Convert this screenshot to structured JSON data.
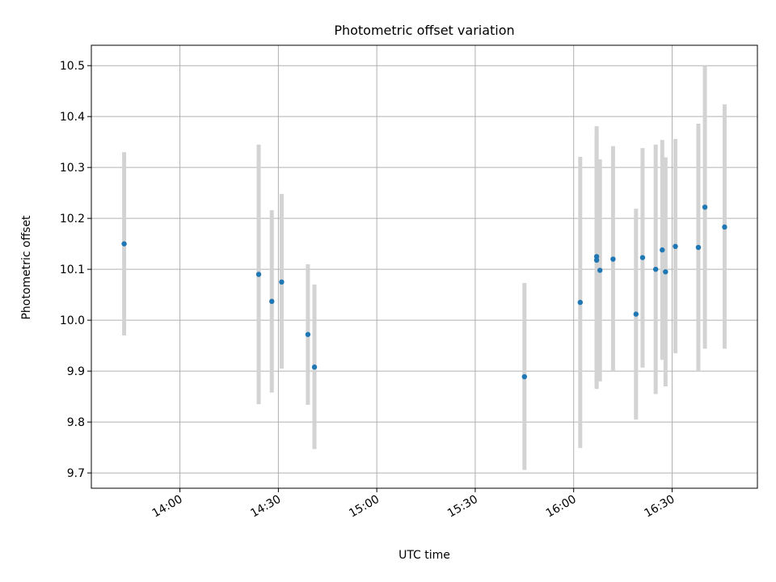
{
  "chart_data": {
    "type": "scatter",
    "title": "Photometric offset variation",
    "xlabel": "UTC time",
    "ylabel": "Photometric offset",
    "xlim": [
      "13:33",
      "16:56"
    ],
    "ylim": [
      9.67,
      10.54
    ],
    "grid": true,
    "x_ticks": [
      "14:00",
      "14:30",
      "15:00",
      "15:30",
      "16:00",
      "16:30"
    ],
    "y_ticks": [
      9.7,
      9.8,
      9.9,
      10.0,
      10.1,
      10.2,
      10.3,
      10.4,
      10.5
    ],
    "point_color": "#1f77b4",
    "errorbar_color": "#d3d3d3",
    "points": [
      {
        "t": "13:43",
        "y": 10.15,
        "low": 9.97,
        "high": 10.33
      },
      {
        "t": "14:24",
        "y": 10.09,
        "low": 9.835,
        "high": 10.345
      },
      {
        "t": "14:28",
        "y": 10.037,
        "low": 9.858,
        "high": 10.216
      },
      {
        "t": "14:31",
        "y": 10.075,
        "low": 9.905,
        "high": 10.248
      },
      {
        "t": "14:39",
        "y": 9.972,
        "low": 9.834,
        "high": 10.11
      },
      {
        "t": "14:41",
        "y": 9.908,
        "low": 9.747,
        "high": 10.07
      },
      {
        "t": "15:45",
        "y": 9.889,
        "low": 9.706,
        "high": 10.073
      },
      {
        "t": "16:02",
        "y": 10.035,
        "low": 9.749,
        "high": 10.321
      },
      {
        "t": "16:07",
        "y": 10.125,
        "low": 9.868,
        "high": 10.381
      },
      {
        "t": "16:07",
        "y": 10.118,
        "low": 9.865,
        "high": 10.37
      },
      {
        "t": "16:08",
        "y": 10.098,
        "low": 9.88,
        "high": 10.316
      },
      {
        "t": "16:12",
        "y": 10.12,
        "low": 9.9,
        "high": 10.342
      },
      {
        "t": "16:19",
        "y": 10.012,
        "low": 9.805,
        "high": 10.219
      },
      {
        "t": "16:21",
        "y": 10.123,
        "low": 9.907,
        "high": 10.338
      },
      {
        "t": "16:25",
        "y": 10.1,
        "low": 9.855,
        "high": 10.345
      },
      {
        "t": "16:27",
        "y": 10.138,
        "low": 9.922,
        "high": 10.354
      },
      {
        "t": "16:28",
        "y": 10.095,
        "low": 9.87,
        "high": 10.32
      },
      {
        "t": "16:31",
        "y": 10.145,
        "low": 9.935,
        "high": 10.356
      },
      {
        "t": "16:38",
        "y": 10.143,
        "low": 9.9,
        "high": 10.386
      },
      {
        "t": "16:40",
        "y": 10.222,
        "low": 9.944,
        "high": 10.5
      },
      {
        "t": "16:46",
        "y": 10.183,
        "low": 9.944,
        "high": 10.424
      }
    ]
  }
}
